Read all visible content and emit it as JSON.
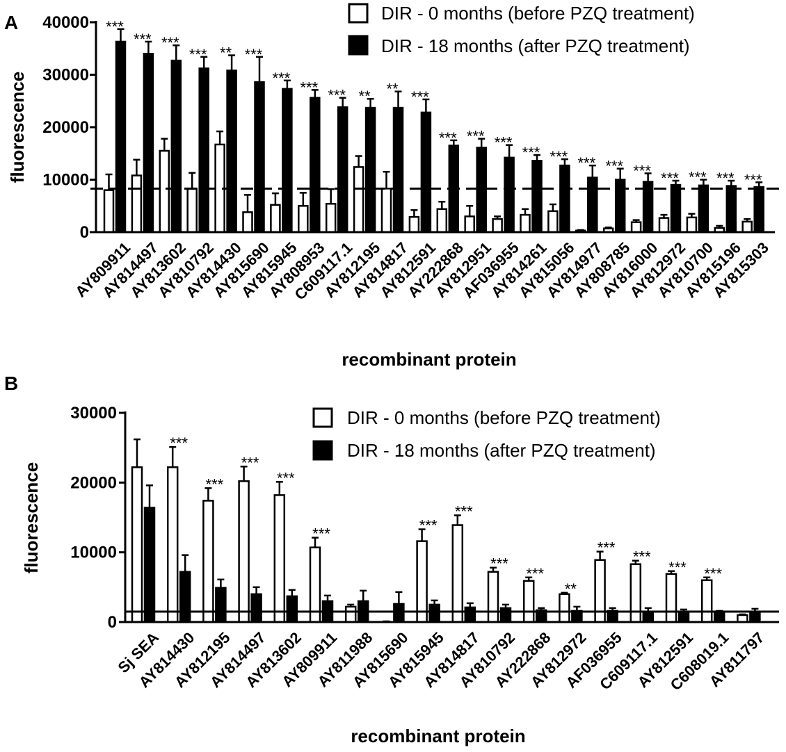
{
  "chart_data": [
    {
      "panel": "A",
      "type": "bar",
      "xlabel": "recombinant protein",
      "ylabel": "fluorescence",
      "ylim": [
        0,
        40000
      ],
      "yticks": [
        "0",
        "10000",
        "20000",
        "30000",
        "40000"
      ],
      "ytick_values": [
        0,
        10000,
        20000,
        30000,
        40000
      ],
      "legend_position": "top-right",
      "cutoff": 8300,
      "categories": [
        "AY809911",
        "AY814497",
        "AY813602",
        "AY810792",
        "AY814430",
        "AY815690",
        "AY815945",
        "AY808953",
        "C609117.1",
        "AY812195",
        "AY814817",
        "AY812591",
        "AY222868",
        "AY812951",
        "AF036955",
        "AY814261",
        "AY815056",
        "AY814977",
        "AY808785",
        "AY816000",
        "AY812972",
        "AY810700",
        "AY815196",
        "AY815303"
      ],
      "series": [
        {
          "name": "DIR - 0 months (before PZQ treatment)",
          "fill": "#ffffff",
          "values": [
            8000,
            10800,
            15500,
            8300,
            16700,
            3800,
            5200,
            5000,
            5400,
            12400,
            8300,
            2900,
            4400,
            3000,
            2500,
            3300,
            4000,
            300,
            700,
            1900,
            2700,
            2800,
            800,
            2000
          ],
          "errors": [
            3000,
            3000,
            2300,
            3000,
            2500,
            3300,
            2200,
            2500,
            2800,
            2100,
            3200,
            1300,
            1400,
            2000,
            500,
            1100,
            1300,
            100,
            200,
            400,
            600,
            700,
            400,
            500
          ]
        },
        {
          "name": "DIR - 18 months (after PZQ treatment)",
          "fill": "#000000",
          "values": [
            36300,
            34000,
            32700,
            31200,
            30800,
            28600,
            27300,
            25600,
            23800,
            23700,
            23700,
            22800,
            16500,
            16100,
            14200,
            13600,
            12700,
            10400,
            10000,
            9600,
            9000,
            8900,
            8800,
            8600
          ],
          "errors": [
            2400,
            2300,
            2900,
            2200,
            2900,
            4800,
            1600,
            1500,
            1800,
            1700,
            3100,
            2500,
            1000,
            1700,
            2400,
            1100,
            1200,
            2300,
            2100,
            1600,
            800,
            1100,
            1000,
            900
          ]
        }
      ],
      "significance": [
        "***",
        "***",
        "***",
        "***",
        "**",
        "***",
        "***",
        "***",
        "***",
        "**",
        "**",
        "***",
        "***",
        "***",
        "***",
        "***",
        "***",
        "***",
        "***",
        "***",
        "***",
        "***",
        "***",
        "***"
      ]
    },
    {
      "panel": "B",
      "type": "bar",
      "xlabel": "recombinant protein",
      "ylabel": "fluorescence",
      "ylim": [
        0,
        30000
      ],
      "yticks": [
        "0",
        "10000",
        "20000",
        "30000"
      ],
      "ytick_values": [
        0,
        10000,
        20000,
        30000
      ],
      "legend_position": "top-right",
      "cutoff": 1500,
      "categories": [
        "Sj SEA",
        "AY814430",
        "AY812195",
        "AY814497",
        "AY813602",
        "AY809911",
        "AY811988",
        "AY815690",
        "AY815945",
        "AY814817",
        "AY810792",
        "AY222868",
        "AY812972",
        "AF036955",
        "C609117.1",
        "AY812591",
        "C608019.1",
        "AY811797"
      ],
      "series": [
        {
          "name": "DIR - 0 months (before PZQ treatment)",
          "fill": "#ffffff",
          "values": [
            22200,
            22200,
            17400,
            20200,
            18200,
            10700,
            2200,
            0,
            11600,
            13900,
            7200,
            5900,
            4000,
            8900,
            8300,
            6900,
            6000,
            1000
          ],
          "errors": [
            4000,
            2900,
            1800,
            2100,
            1900,
            1400,
            300,
            100,
            1700,
            1400,
            600,
            500,
            200,
            1200,
            500,
            400,
            400,
            100
          ]
        },
        {
          "name": "DIR - 18 months (after PZQ treatment)",
          "fill": "#000000",
          "values": [
            16400,
            7200,
            4900,
            4000,
            3700,
            3000,
            3000,
            2600,
            2500,
            2100,
            2000,
            1700,
            1600,
            1600,
            1500,
            1500,
            1400,
            1500
          ],
          "errors": [
            3200,
            2400,
            1200,
            1000,
            900,
            800,
            1500,
            1700,
            600,
            600,
            500,
            300,
            600,
            400,
            500,
            300,
            200,
            400
          ]
        }
      ],
      "significance": [
        "",
        "***",
        "***",
        "***",
        "***",
        "***",
        "",
        "",
        "***",
        "***",
        "***",
        "***",
        "**",
        "***",
        "***",
        "***",
        "***",
        ""
      ]
    }
  ]
}
